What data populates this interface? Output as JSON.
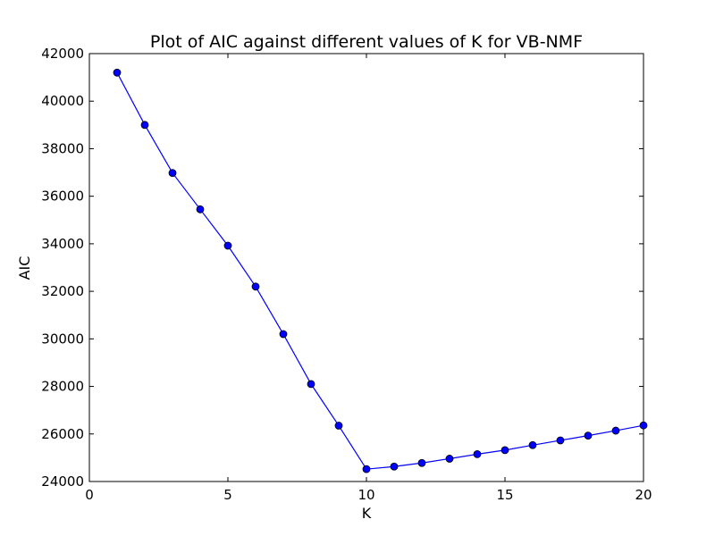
{
  "chart_data": {
    "type": "line",
    "title": "Plot of AIC against different values of K for VB-NMF",
    "xlabel": "K",
    "ylabel": "AIC",
    "xlim": [
      0,
      20
    ],
    "ylim": [
      24000,
      42000
    ],
    "xticks": [
      0,
      5,
      10,
      15,
      20
    ],
    "yticks": [
      24000,
      26000,
      28000,
      30000,
      32000,
      34000,
      36000,
      38000,
      40000,
      42000
    ],
    "grid": false,
    "series": [
      {
        "color": "#0000ff",
        "marker": "circle",
        "x": [
          1,
          2,
          3,
          4,
          5,
          6,
          7,
          8,
          9,
          10,
          11,
          12,
          13,
          14,
          15,
          16,
          17,
          18,
          19,
          20
        ],
        "y": [
          41200,
          39000,
          36980,
          35450,
          33920,
          32200,
          30200,
          28100,
          26350,
          24520,
          24630,
          24780,
          24960,
          25150,
          25320,
          25530,
          25730,
          25930,
          26140,
          26360
        ]
      }
    ]
  }
}
